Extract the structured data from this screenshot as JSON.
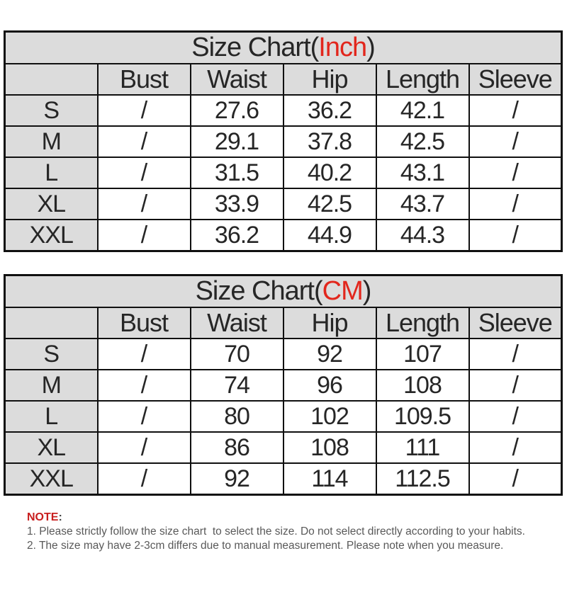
{
  "colors": {
    "header_bg": "#dcdcdc",
    "border": "#101010",
    "table_text": "#262626",
    "unit_red": "#e2261c",
    "note_red": "#c81e1e",
    "note_text": "#595959"
  },
  "tables": [
    {
      "title_prefix": "Size Chart(",
      "title_unit": "Inch",
      "title_suffix": ")",
      "columns": [
        "",
        "Bust",
        "Waist",
        "Hip",
        "Length",
        "Sleeve"
      ],
      "rows": [
        {
          "size": "S",
          "values": [
            "/",
            "27.6",
            "36.2",
            "42.1",
            "/"
          ]
        },
        {
          "size": "M",
          "values": [
            "/",
            "29.1",
            "37.8",
            "42.5",
            "/"
          ]
        },
        {
          "size": "L",
          "values": [
            "/",
            "31.5",
            "40.2",
            "43.1",
            "/"
          ]
        },
        {
          "size": "XL",
          "values": [
            "/",
            "33.9",
            "42.5",
            "43.7",
            "/"
          ]
        },
        {
          "size": "XXL",
          "values": [
            "/",
            "36.2",
            "44.9",
            "44.3",
            "/"
          ]
        }
      ]
    },
    {
      "title_prefix": "Size Chart(",
      "title_unit": "CM",
      "title_suffix": ")",
      "columns": [
        "",
        "Bust",
        "Waist",
        "Hip",
        "Length",
        "Sleeve"
      ],
      "rows": [
        {
          "size": "S",
          "values": [
            "/",
            "70",
            "92",
            "107",
            "/"
          ]
        },
        {
          "size": "M",
          "values": [
            "/",
            "74",
            "96",
            "108",
            "/"
          ]
        },
        {
          "size": "L",
          "values": [
            "/",
            "80",
            "102",
            "109.5",
            "/"
          ]
        },
        {
          "size": "XL",
          "values": [
            "/",
            "86",
            "108",
            "111",
            "/"
          ]
        },
        {
          "size": "XXL",
          "values": [
            "/",
            "92",
            "114",
            "112.5",
            "/"
          ]
        }
      ]
    }
  ],
  "note": {
    "label": "NOTE",
    "colon": ":",
    "lines": [
      "1. Please strictly follow the size chart  to select the size. Do not select directly according to your habits.",
      "2. The size may have 2-3cm differs due to manual measurement. Please note when you measure."
    ]
  }
}
